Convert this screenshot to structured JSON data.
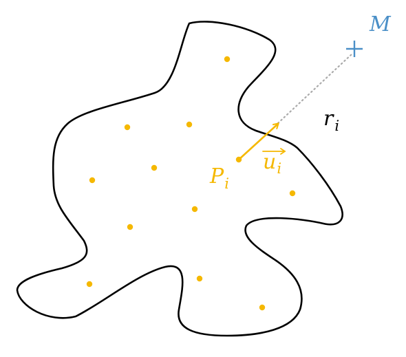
{
  "colors": {
    "outline": "#000000",
    "points": "#f5b800",
    "vector": "#f5b800",
    "target": "#4a8fc7",
    "distance_line": "#aaaaaa"
  },
  "labels": {
    "target": "M",
    "point_main": "P",
    "point_sub": "i",
    "vector_main": "u",
    "vector_sub": "i",
    "distance_main": "r",
    "distance_sub": "i"
  }
}
